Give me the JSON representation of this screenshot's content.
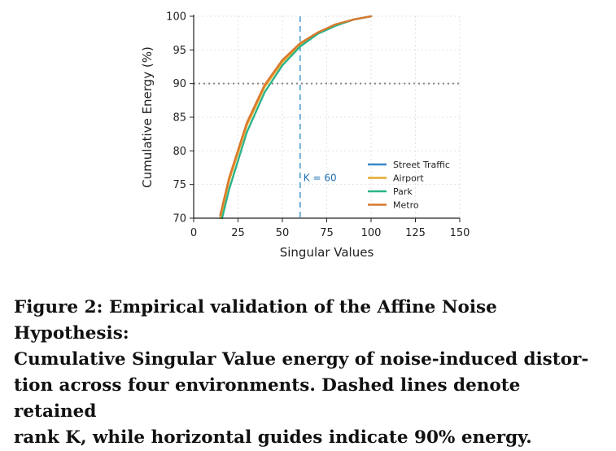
{
  "chart_data": {
    "type": "line",
    "xlabel": "Singular Values",
    "ylabel": "Cumulative Energy (%)",
    "xlim": [
      0,
      150
    ],
    "ylim": [
      70,
      100
    ],
    "xticks": [
      0,
      25,
      50,
      75,
      100,
      125,
      150
    ],
    "yticks": [
      70,
      75,
      80,
      85,
      90,
      95,
      100
    ],
    "x_tick_labels": [
      "0",
      "25",
      "50",
      "75",
      "100",
      "125",
      "150"
    ],
    "y_tick_labels": [
      "70",
      "75",
      "80",
      "85",
      "90",
      "95",
      "100"
    ],
    "grid": true,
    "legend_position": "lower-right",
    "series": [
      {
        "name": "Street Traffic",
        "color": "#3a86c8",
        "x": [
          15,
          20,
          30,
          40,
          50,
          60,
          70,
          80,
          90,
          100
        ],
        "y": [
          70.3,
          75.8,
          84.0,
          89.6,
          93.3,
          95.8,
          97.5,
          98.7,
          99.5,
          100
        ]
      },
      {
        "name": "Airport",
        "color": "#e6ab2e",
        "x": [
          15,
          20,
          30,
          40,
          50,
          60,
          70,
          80,
          90,
          100
        ],
        "y": [
          70.0,
          75.6,
          83.8,
          89.5,
          93.2,
          95.8,
          97.5,
          98.7,
          99.5,
          100
        ]
      },
      {
        "name": "Park",
        "color": "#2bb38a",
        "x": [
          16,
          20,
          30,
          40,
          50,
          60,
          70,
          80,
          90,
          100
        ],
        "y": [
          70.0,
          74.3,
          82.8,
          88.7,
          92.7,
          95.5,
          97.4,
          98.6,
          99.5,
          100
        ]
      },
      {
        "name": "Metro",
        "color": "#d9782e",
        "x": [
          15,
          20,
          30,
          40,
          50,
          60,
          70,
          80,
          90,
          100
        ],
        "y": [
          70.5,
          76.0,
          84.2,
          89.8,
          93.5,
          96.0,
          97.6,
          98.8,
          99.5,
          100
        ]
      }
    ],
    "reference_lines": [
      {
        "orientation": "vertical",
        "value": 60,
        "style": "dashed",
        "color": "#6aaed6",
        "label": "K = 60"
      },
      {
        "orientation": "horizontal",
        "value": 90,
        "style": "dotted",
        "color": "#888888"
      }
    ]
  },
  "caption": {
    "lines": [
      "Figure 2: Empirical validation of the Affine Noise Hypothesis:",
      "Cumulative Singular Value energy of noise-induced distor-",
      "tion across four environments. Dashed lines denote retained",
      "rank K, while horizontal guides indicate 90% energy."
    ]
  }
}
